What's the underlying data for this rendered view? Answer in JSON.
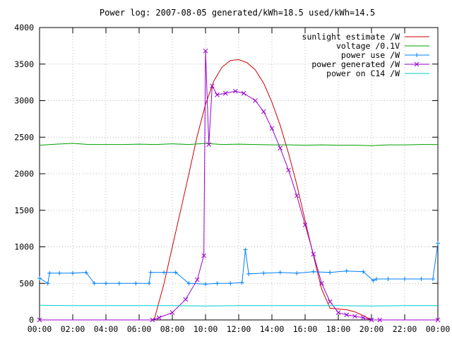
{
  "chart_data": {
    "type": "line",
    "title": "Power log: 2007-08-05 generated/kWh=18.5 used/kWh=14.5",
    "xlabel": "",
    "ylabel": "",
    "xlim": [
      0,
      24
    ],
    "ylim": [
      0,
      4000
    ],
    "x_ticks": [
      "00:00",
      "02:00",
      "04:00",
      "06:00",
      "08:00",
      "10:00",
      "12:00",
      "14:00",
      "16:00",
      "18:00",
      "20:00",
      "22:00",
      "00:00"
    ],
    "y_ticks": [
      "0",
      "500",
      "1000",
      "1500",
      "2000",
      "2500",
      "3000",
      "3500",
      "4000"
    ],
    "grid": true,
    "legend_position": "top-right",
    "series": [
      {
        "name": "sunlight estimate /W",
        "color": "#cc0000",
        "style": "line",
        "x": [
          6.9,
          7.5,
          8,
          8.5,
          9,
          9.5,
          10,
          10.5,
          11,
          11.5,
          12,
          12.5,
          13,
          13.5,
          14,
          14.5,
          15,
          15.5,
          16,
          16.5,
          17,
          17.5,
          18,
          18.5,
          19,
          19.5,
          20
        ],
        "values": [
          0,
          500,
          1000,
          1500,
          2000,
          2520,
          2950,
          3270,
          3460,
          3550,
          3560,
          3520,
          3420,
          3240,
          2980,
          2660,
          2280,
          1850,
          1360,
          880,
          420,
          160,
          150,
          140,
          110,
          60,
          0
        ]
      },
      {
        "name": "voltage /0.1V",
        "color": "#00a000",
        "style": "line",
        "x": [
          0,
          1,
          2,
          3,
          4,
          5,
          6,
          7,
          8,
          9,
          10,
          11,
          12,
          13,
          14,
          15,
          16,
          17,
          18,
          19,
          20,
          21,
          22,
          23,
          24
        ],
        "values": [
          2390,
          2405,
          2415,
          2400,
          2400,
          2400,
          2405,
          2400,
          2410,
          2400,
          2415,
          2400,
          2405,
          2400,
          2395,
          2395,
          2390,
          2395,
          2390,
          2390,
          2385,
          2395,
          2395,
          2400,
          2400
        ]
      },
      {
        "name": "power use /W",
        "color": "#0080ff",
        "style": "linepoints",
        "x": [
          0,
          0.5,
          0.6,
          1.2,
          2,
          2.8,
          3.3,
          4,
          4.8,
          5.8,
          6.6,
          6.7,
          7.5,
          8.2,
          9,
          10,
          10.7,
          11.5,
          12.2,
          12.4,
          12.6,
          13.5,
          14.5,
          15.5,
          16.5,
          17.5,
          18.5,
          19.5,
          20.1,
          20.3,
          21,
          22,
          23,
          23.7,
          24
        ],
        "values": [
          570,
          500,
          640,
          640,
          640,
          650,
          500,
          500,
          500,
          500,
          500,
          650,
          650,
          650,
          500,
          490,
          500,
          500,
          510,
          960,
          630,
          640,
          650,
          640,
          660,
          650,
          670,
          660,
          540,
          560,
          560,
          560,
          560,
          560,
          1050
        ]
      },
      {
        "name": "power generated /W",
        "color": "#9900cc",
        "style": "linepoints",
        "x": [
          0,
          6.8,
          7.2,
          8,
          8.8,
          9.5,
          9.9,
          10,
          10.2,
          10.4,
          10.7,
          11.2,
          11.8,
          12.3,
          13,
          13.5,
          14,
          14.5,
          15,
          15.5,
          16,
          16.5,
          17,
          17.5,
          18,
          18.5,
          19,
          19.5,
          20,
          20.5,
          24
        ],
        "values": [
          0,
          0,
          30,
          100,
          280,
          550,
          880,
          3680,
          2400,
          3200,
          3080,
          3100,
          3130,
          3100,
          3000,
          2850,
          2620,
          2350,
          2050,
          1700,
          1300,
          900,
          500,
          250,
          100,
          70,
          50,
          30,
          0,
          0,
          0
        ]
      },
      {
        "name": "power on C14 /W",
        "color": "#00cccc",
        "style": "line",
        "x": [
          0,
          2,
          4,
          6,
          8,
          10,
          12,
          14,
          16,
          18,
          20,
          22,
          24
        ],
        "values": [
          200,
          195,
          195,
          195,
          195,
          190,
          195,
          195,
          195,
          195,
          190,
          195,
          195
        ]
      }
    ]
  }
}
